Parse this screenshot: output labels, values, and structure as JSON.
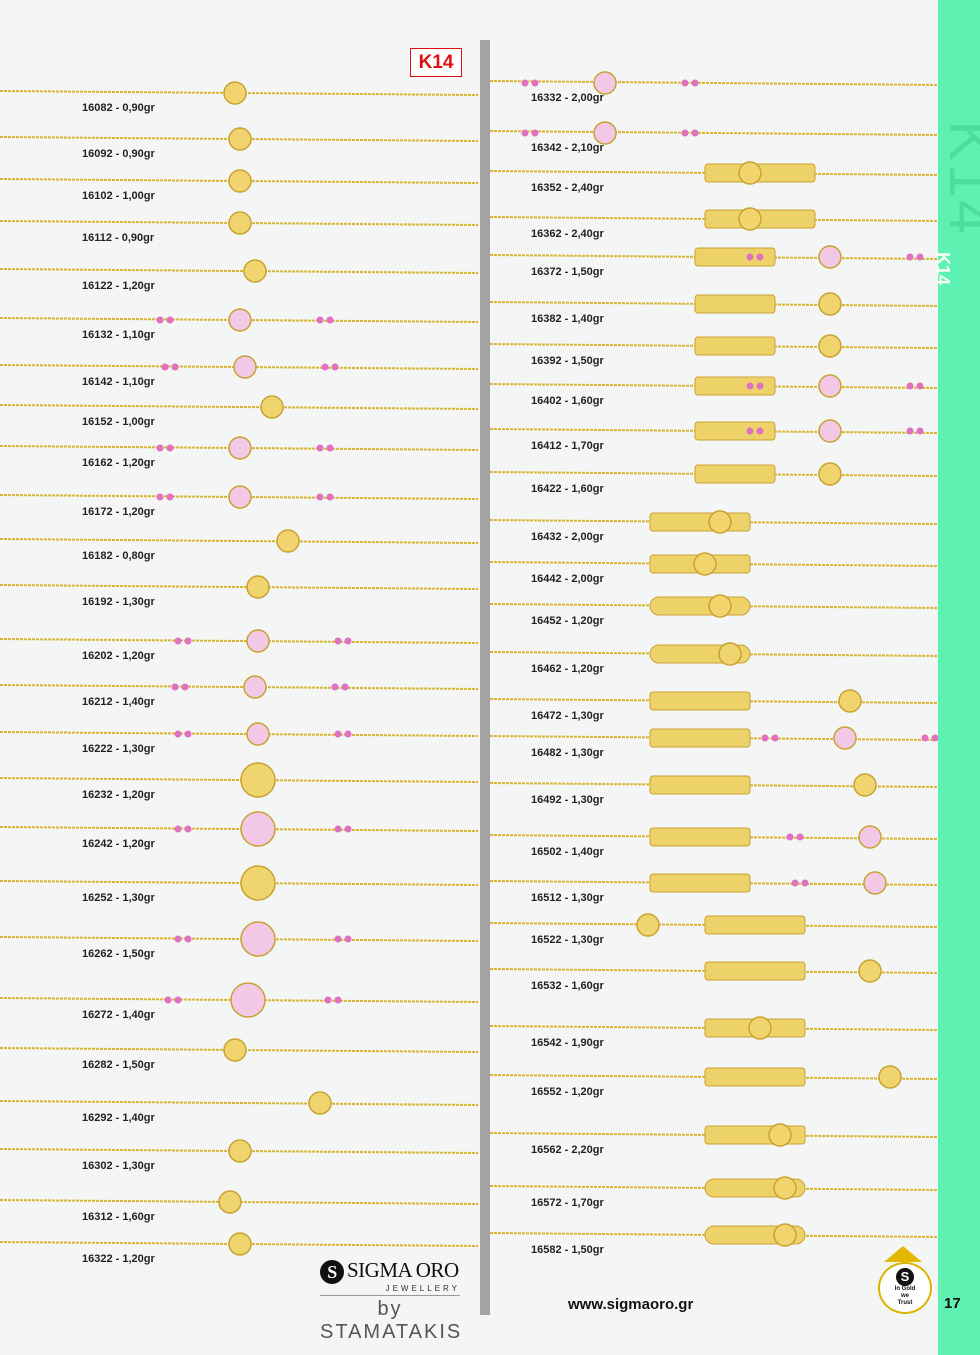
{
  "header": {
    "badge": "K14"
  },
  "sidebar": {
    "big_label": "K14",
    "small_label": "K14",
    "page_number": "17"
  },
  "left_products": [
    "16082 - 0,90gr",
    "16092 - 0,90gr",
    "16102 - 1,00gr",
    "16112 - 0,90gr",
    "16122 - 1,20gr",
    "16132 - 1,10gr",
    "16142 - 1,10gr",
    "16152 - 1,00gr",
    "16162 - 1,20gr",
    "16172 - 1,20gr",
    "16182 - 0,80gr",
    "16192 - 1,30gr",
    "16202 - 1,20gr",
    "16212 - 1,40gr",
    "16222 - 1,30gr",
    "16232 - 1,20gr",
    "16242 - 1,20gr",
    "16252 - 1,30gr",
    "16262 - 1,50gr",
    "16272 - 1,40gr",
    "16282 - 1,50gr",
    "16292 - 1,40gr",
    "16302 - 1,30gr",
    "16312 - 1,60gr",
    "16322 - 1,20gr"
  ],
  "right_products": [
    "16332 - 2,00gr",
    "16342 - 2,10gr",
    "16352 - 2,40gr",
    "16362 - 2,40gr",
    "16372 - 1,50gr",
    "16382 - 1,40gr",
    "16392 - 1,50gr",
    "16402 - 1,60gr",
    "16412 - 1,70gr",
    "16422 - 1,60gr",
    "16432 - 2,00gr",
    "16442 - 2,00gr",
    "16452 - 1,20gr",
    "16462 - 1,20gr",
    "16472 - 1,30gr",
    "16482 - 1,30gr",
    "16492 - 1,30gr",
    "16502 - 1,40gr",
    "16512 - 1,30gr",
    "16522 - 1,30gr",
    "16532 - 1,60gr",
    "16542 - 1,90gr",
    "16552 - 1,20gr",
    "16562 - 2,20gr",
    "16572 - 1,70gr",
    "16582 - 1,50gr"
  ],
  "footer": {
    "logo_main": "SIGMA ORO",
    "logo_sub": "JEWELLERY",
    "logo_by": "by STAMATAKIS",
    "website": "www.sigmaoro.gr",
    "trust_badge": [
      "In Gold",
      "we",
      "Trust"
    ]
  },
  "colors": {
    "gold": "#d9b530",
    "accent_green": "#5ef2b2",
    "badge_red": "#e01010",
    "pink": "#e070c0"
  }
}
